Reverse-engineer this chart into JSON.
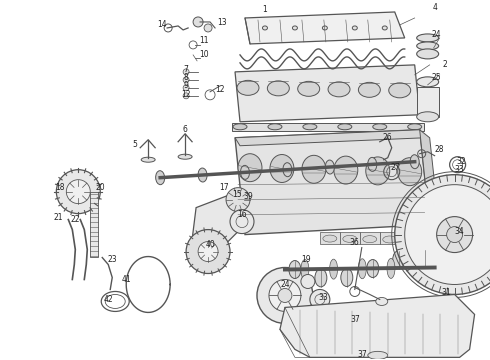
{
  "background_color": "#ffffff",
  "line_color": "#555555",
  "label_color": "#222222",
  "figsize": [
    4.9,
    3.6
  ],
  "dpi": 100,
  "label_fs": 5.5,
  "lw_main": 0.8,
  "lw_thin": 0.5,
  "lw_thick": 1.2
}
